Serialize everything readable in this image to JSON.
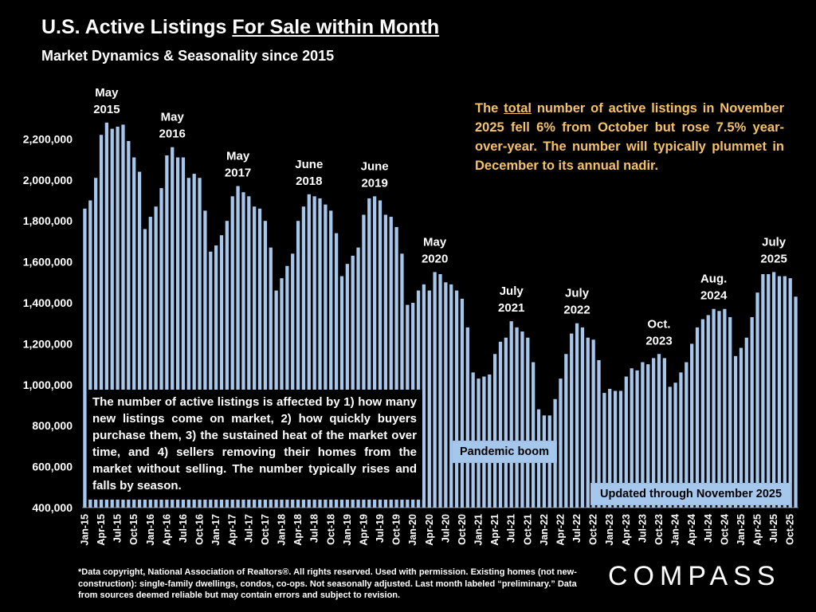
{
  "title_parts": {
    "prefix": "U.S. Active Listings ",
    "underlined": "For Sale within Month"
  },
  "subtitle": "Market Dynamics & Seasonality since 2015",
  "note_top": {
    "before": "The ",
    "underlined": "total",
    "after": " number of active listings in November 2025 fell 6% from October but rose 7.5% year-over-year. The number will typically plummet in December to its annual nadir."
  },
  "note_bottom": "The number of active listings is affected by 1) how many new listings come on market, 2) how quickly buyers purchase them, 3) the sustained heat of the market over time, and 4) sellers removing their homes from the market without selling. The number typically rises and falls by season.",
  "pandemic_label": "Pandemic boom",
  "updated_label": "Updated through November 2025",
  "footnote": "*Data copyright, National Association of Realtors®. All rights reserved. Used with permission. Existing homes (not new-construction): single-family dwellings, condos, co-ops. Not seasonally adjusted. Last month labeled “preliminary.” Data from sources deemed reliable but may contain errors and subject to revision.",
  "logo": "COMPASS",
  "colors": {
    "bar": "#a6c7ec",
    "background": "#000000",
    "note_text": "#f5c267"
  },
  "chart_data": {
    "type": "bar",
    "ylim": [
      400000,
      2400000
    ],
    "yticks": [
      400000,
      600000,
      800000,
      1000000,
      1200000,
      1400000,
      1600000,
      1800000,
      2000000,
      2200000
    ],
    "ytick_labels": [
      "400,000",
      "600,000",
      "800,000",
      "1,000,000",
      "1,200,000",
      "1,400,000",
      "1,600,000",
      "1,800,000",
      "2,000,000",
      "2,200,000"
    ],
    "start": "Jan-15",
    "end": "Nov-25",
    "xtick_labels": [
      "Jan-15",
      "Apr-15",
      "Jul-15",
      "Oct-15",
      "Jan-16",
      "Apr-16",
      "Jul-16",
      "Oct-16",
      "Jan-17",
      "Apr-17",
      "Jul-17",
      "Oct-17",
      "Jan-18",
      "Apr-18",
      "Jul-18",
      "Oct-18",
      "Jan-19",
      "Apr-19",
      "Jul-19",
      "Oct-19",
      "Jan-20",
      "Apr-20",
      "Jul-20",
      "Oct-20",
      "Jan-21",
      "Apr-21",
      "Jul-21",
      "Oct-21",
      "Jan-22",
      "Apr-22",
      "Jul-22",
      "Oct-22",
      "Jan-23",
      "Apr-23",
      "Jul-23",
      "Oct-23",
      "Jan-24",
      "Apr-24",
      "Jul-24",
      "Oct-24",
      "Jan-25",
      "Apr-25",
      "Jul-25",
      "Oct-25"
    ],
    "values": [
      1860000,
      1900000,
      2010000,
      2220000,
      2280000,
      2250000,
      2260000,
      2270000,
      2190000,
      2110000,
      2040000,
      1760000,
      1820000,
      1870000,
      1960000,
      2120000,
      2160000,
      2110000,
      2110000,
      2010000,
      2030000,
      2010000,
      1850000,
      1650000,
      1680000,
      1730000,
      1800000,
      1920000,
      1970000,
      1940000,
      1920000,
      1870000,
      1860000,
      1800000,
      1670000,
      1460000,
      1520000,
      1580000,
      1640000,
      1800000,
      1870000,
      1930000,
      1920000,
      1910000,
      1880000,
      1850000,
      1740000,
      1530000,
      1590000,
      1630000,
      1670000,
      1830000,
      1910000,
      1920000,
      1900000,
      1830000,
      1820000,
      1770000,
      1640000,
      1390000,
      1400000,
      1460000,
      1490000,
      1460000,
      1550000,
      1540000,
      1500000,
      1490000,
      1460000,
      1420000,
      1280000,
      1060000,
      1030000,
      1040000,
      1050000,
      1150000,
      1210000,
      1230000,
      1310000,
      1280000,
      1260000,
      1230000,
      1110000,
      880000,
      850000,
      850000,
      930000,
      1030000,
      1150000,
      1250000,
      1300000,
      1280000,
      1230000,
      1220000,
      1120000,
      960000,
      980000,
      970000,
      970000,
      1040000,
      1080000,
      1070000,
      1110000,
      1100000,
      1130000,
      1150000,
      1130000,
      990000,
      1010000,
      1060000,
      1110000,
      1200000,
      1280000,
      1320000,
      1340000,
      1370000,
      1360000,
      1370000,
      1330000,
      1140000,
      1180000,
      1230000,
      1330000,
      1450000,
      1540000,
      1540000,
      1550000,
      1530000,
      1530000,
      1520000,
      1430000
    ],
    "annotations": [
      {
        "label": [
          "May",
          "2015"
        ],
        "index": 4
      },
      {
        "label": [
          "May",
          "2016"
        ],
        "index": 16
      },
      {
        "label": [
          "May",
          "2017"
        ],
        "index": 28
      },
      {
        "label": [
          "June",
          "2018"
        ],
        "index": 41
      },
      {
        "label": [
          "June",
          "2019"
        ],
        "index": 53
      },
      {
        "label": [
          "May",
          "2020"
        ],
        "index": 64
      },
      {
        "label": [
          "July",
          "2021"
        ],
        "index": 78
      },
      {
        "label": [
          "July",
          "2022"
        ],
        "index": 90
      },
      {
        "label": [
          "Oct.",
          "2023"
        ],
        "index": 105
      },
      {
        "label": [
          "Aug.",
          "2024"
        ],
        "index": 115
      },
      {
        "label": [
          "July",
          "2025"
        ],
        "index": 126
      }
    ]
  }
}
